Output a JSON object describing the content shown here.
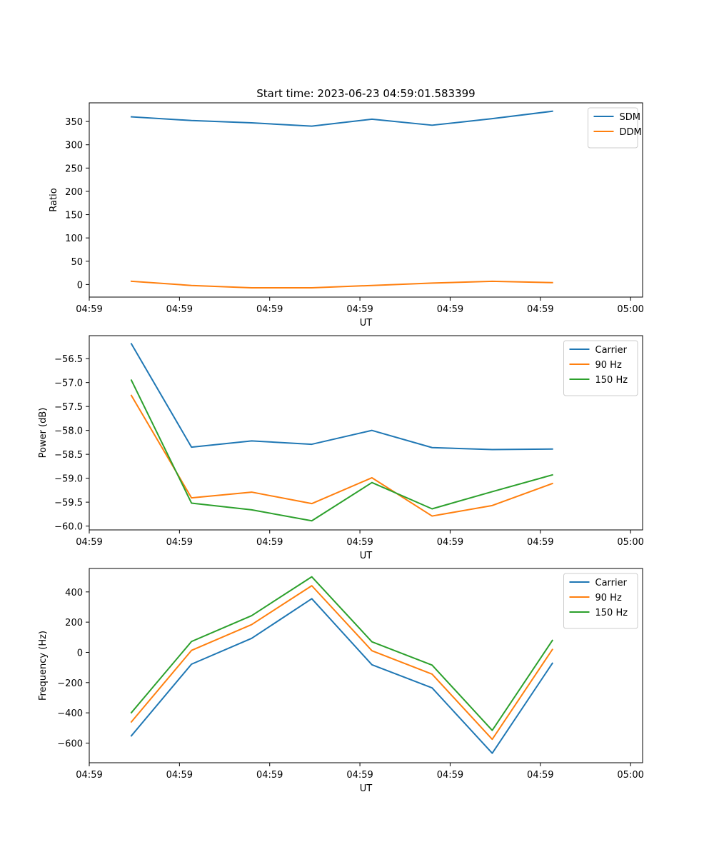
{
  "figure": {
    "title": "Start time: 2023-06-23 04:59:01.583399"
  },
  "chart_data": [
    {
      "type": "line",
      "xlabel": "UT",
      "ylabel": "Ratio",
      "x": [
        0,
        1,
        2,
        3,
        4,
        5,
        6,
        7
      ],
      "xlim": [
        -0.7,
        8.5
      ],
      "x_ticks": [
        {
          "pos": -0.7,
          "label": "04:59"
        },
        {
          "pos": 0.8,
          "label": "04:59"
        },
        {
          "pos": 2.3,
          "label": "04:59"
        },
        {
          "pos": 3.8,
          "label": "04:59"
        },
        {
          "pos": 5.3,
          "label": "04:59"
        },
        {
          "pos": 6.8,
          "label": "04:59"
        },
        {
          "pos": 8.3,
          "label": "05:00"
        }
      ],
      "ylim": [
        -27,
        390
      ],
      "y_ticks": [
        0,
        50,
        100,
        150,
        200,
        250,
        300,
        350
      ],
      "y_tick_labels": [
        "0",
        "50",
        "100",
        "150",
        "200",
        "250",
        "300",
        "350"
      ],
      "series": [
        {
          "name": "SDM",
          "color": "#1f77b4",
          "values": [
            360,
            352,
            347,
            340,
            355,
            342,
            356,
            372
          ]
        },
        {
          "name": "DDM",
          "color": "#ff7f0e",
          "values": [
            7,
            -2,
            -7,
            -7,
            -2,
            3,
            7,
            4
          ]
        }
      ],
      "legend": "top-right"
    },
    {
      "type": "line",
      "xlabel": "UT",
      "ylabel": "Power (dB)",
      "x": [
        0,
        1,
        2,
        3,
        4,
        5,
        6,
        7
      ],
      "xlim": [
        -0.7,
        8.5
      ],
      "x_ticks": [
        {
          "pos": -0.7,
          "label": "04:59"
        },
        {
          "pos": 0.8,
          "label": "04:59"
        },
        {
          "pos": 2.3,
          "label": "04:59"
        },
        {
          "pos": 3.8,
          "label": "04:59"
        },
        {
          "pos": 5.3,
          "label": "04:59"
        },
        {
          "pos": 6.8,
          "label": "04:59"
        },
        {
          "pos": 8.3,
          "label": "05:00"
        }
      ],
      "ylim": [
        -60.08,
        -56.02
      ],
      "y_ticks": [
        -60.0,
        -59.5,
        -59.0,
        -58.5,
        -58.0,
        -57.5,
        -57.0,
        -56.5
      ],
      "y_tick_labels": [
        "−60.0",
        "−59.5",
        "−59.0",
        "−58.5",
        "−58.0",
        "−57.5",
        "−57.0",
        "−56.5"
      ],
      "series": [
        {
          "name": "Carrier",
          "color": "#1f77b4",
          "values": [
            -56.19,
            -58.35,
            -58.22,
            -58.29,
            -58.0,
            -58.36,
            -58.4,
            -58.39
          ]
        },
        {
          "name": "90 Hz",
          "color": "#ff7f0e",
          "values": [
            -57.27,
            -59.41,
            -59.29,
            -59.53,
            -58.99,
            -59.79,
            -59.57,
            -59.11
          ]
        },
        {
          "name": "150 Hz",
          "color": "#2ca02c",
          "values": [
            -56.95,
            -59.52,
            -59.66,
            -59.89,
            -59.09,
            -59.64,
            -59.28,
            -58.93
          ]
        }
      ],
      "legend": "top-right"
    },
    {
      "type": "line",
      "xlabel": "UT",
      "ylabel": "Frequency (Hz)",
      "x": [
        0,
        1,
        2,
        3,
        4,
        5,
        6,
        7
      ],
      "xlim": [
        -0.7,
        8.5
      ],
      "x_ticks": [
        {
          "pos": -0.7,
          "label": "04:59"
        },
        {
          "pos": 0.8,
          "label": "04:59"
        },
        {
          "pos": 2.3,
          "label": "04:59"
        },
        {
          "pos": 3.8,
          "label": "04:59"
        },
        {
          "pos": 5.3,
          "label": "04:59"
        },
        {
          "pos": 6.8,
          "label": "04:59"
        },
        {
          "pos": 8.3,
          "label": "05:00"
        }
      ],
      "ylim": [
        -730,
        555
      ],
      "y_ticks": [
        -600,
        -400,
        -200,
        0,
        200,
        400
      ],
      "y_tick_labels": [
        "−600",
        "−400",
        "−200",
        "0",
        "200",
        "400"
      ],
      "series": [
        {
          "name": "Carrier",
          "color": "#1f77b4",
          "values": [
            -552,
            -78,
            93,
            355,
            -82,
            -235,
            -667,
            -72
          ]
        },
        {
          "name": "90 Hz",
          "color": "#ff7f0e",
          "values": [
            -460,
            13,
            184,
            441,
            11,
            -144,
            -575,
            19
          ]
        },
        {
          "name": "150 Hz",
          "color": "#2ca02c",
          "values": [
            -399,
            72,
            243,
            500,
            70,
            -84,
            -516,
            79
          ]
        }
      ],
      "legend": "top-right"
    }
  ]
}
